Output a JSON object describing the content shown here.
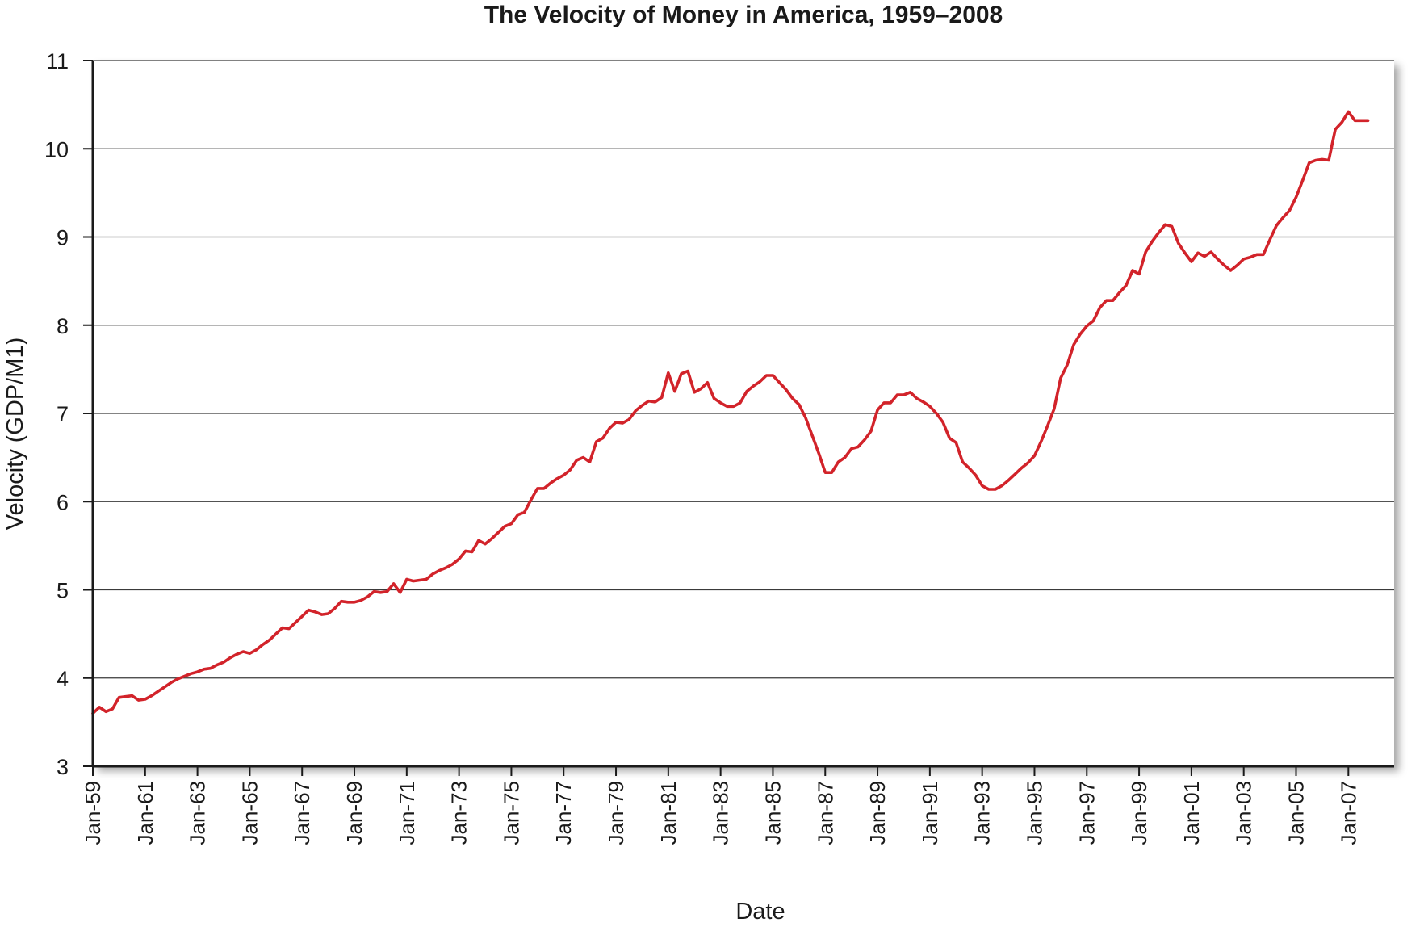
{
  "chart_data": {
    "type": "line",
    "title": "The Velocity of Money in America, 1959–2008",
    "xlabel": "Date",
    "ylabel": "Velocity (GDP/M1)",
    "ylim": [
      3,
      11
    ],
    "xlim": [
      1959.0,
      2008.75
    ],
    "yticks": [
      3,
      4,
      5,
      6,
      7,
      8,
      9,
      10,
      11
    ],
    "xtick_labels": [
      "Jan-59",
      "Jan-61",
      "Jan-63",
      "Jan-65",
      "Jan-67",
      "Jan-69",
      "Jan-71",
      "Jan-73",
      "Jan-75",
      "Jan-77",
      "Jan-79",
      "Jan-81",
      "Jan-83",
      "Jan-85",
      "Jan-87",
      "Jan-89",
      "Jan-91",
      "Jan-93",
      "Jan-95",
      "Jan-97",
      "Jan-99",
      "Jan-01",
      "Jan-03",
      "Jan-05",
      "Jan-07"
    ],
    "xtick_values": [
      1959,
      1961,
      1963,
      1965,
      1967,
      1969,
      1971,
      1973,
      1975,
      1977,
      1979,
      1981,
      1983,
      1985,
      1987,
      1989,
      1991,
      1993,
      1995,
      1997,
      1999,
      2001,
      2003,
      2005,
      2007
    ],
    "grid": true,
    "series": [
      {
        "color": "#d2232a",
        "points": [
          [
            1959.0,
            3.6
          ],
          [
            1959.25,
            3.67
          ],
          [
            1959.5,
            3.62
          ],
          [
            1959.75,
            3.65
          ],
          [
            1960.0,
            3.78
          ],
          [
            1960.25,
            3.79
          ],
          [
            1960.5,
            3.8
          ],
          [
            1960.75,
            3.75
          ],
          [
            1961.0,
            3.76
          ],
          [
            1961.25,
            3.8
          ],
          [
            1961.5,
            3.85
          ],
          [
            1961.75,
            3.9
          ],
          [
            1962.0,
            3.95
          ],
          [
            1962.25,
            3.99
          ],
          [
            1962.5,
            4.02
          ],
          [
            1962.75,
            4.05
          ],
          [
            1963.0,
            4.07
          ],
          [
            1963.25,
            4.1
          ],
          [
            1963.5,
            4.11
          ],
          [
            1963.75,
            4.15
          ],
          [
            1964.0,
            4.18
          ],
          [
            1964.25,
            4.23
          ],
          [
            1964.5,
            4.27
          ],
          [
            1964.75,
            4.3
          ],
          [
            1965.0,
            4.28
          ],
          [
            1965.25,
            4.32
          ],
          [
            1965.5,
            4.38
          ],
          [
            1965.75,
            4.43
          ],
          [
            1966.0,
            4.5
          ],
          [
            1966.25,
            4.57
          ],
          [
            1966.5,
            4.56
          ],
          [
            1966.75,
            4.63
          ],
          [
            1967.0,
            4.7
          ],
          [
            1967.25,
            4.77
          ],
          [
            1967.5,
            4.75
          ],
          [
            1967.75,
            4.72
          ],
          [
            1968.0,
            4.73
          ],
          [
            1968.25,
            4.79
          ],
          [
            1968.5,
            4.87
          ],
          [
            1968.75,
            4.86
          ],
          [
            1969.0,
            4.86
          ],
          [
            1969.25,
            4.88
          ],
          [
            1969.5,
            4.92
          ],
          [
            1969.75,
            4.98
          ],
          [
            1970.0,
            4.97
          ],
          [
            1970.25,
            4.98
          ],
          [
            1970.5,
            5.07
          ],
          [
            1970.75,
            4.97
          ],
          [
            1971.0,
            5.12
          ],
          [
            1971.25,
            5.1
          ],
          [
            1971.5,
            5.11
          ],
          [
            1971.75,
            5.12
          ],
          [
            1972.0,
            5.18
          ],
          [
            1972.25,
            5.22
          ],
          [
            1972.5,
            5.25
          ],
          [
            1972.75,
            5.29
          ],
          [
            1973.0,
            5.35
          ],
          [
            1973.25,
            5.44
          ],
          [
            1973.5,
            5.43
          ],
          [
            1973.75,
            5.56
          ],
          [
            1974.0,
            5.52
          ],
          [
            1974.25,
            5.58
          ],
          [
            1974.5,
            5.65
          ],
          [
            1974.75,
            5.72
          ],
          [
            1975.0,
            5.75
          ],
          [
            1975.25,
            5.85
          ],
          [
            1975.5,
            5.88
          ],
          [
            1975.75,
            6.02
          ],
          [
            1976.0,
            6.15
          ],
          [
            1976.25,
            6.15
          ],
          [
            1976.5,
            6.21
          ],
          [
            1976.75,
            6.26
          ],
          [
            1977.0,
            6.3
          ],
          [
            1977.25,
            6.36
          ],
          [
            1977.5,
            6.47
          ],
          [
            1977.75,
            6.5
          ],
          [
            1978.0,
            6.45
          ],
          [
            1978.25,
            6.68
          ],
          [
            1978.5,
            6.72
          ],
          [
            1978.75,
            6.83
          ],
          [
            1979.0,
            6.9
          ],
          [
            1979.25,
            6.89
          ],
          [
            1979.5,
            6.93
          ],
          [
            1979.75,
            7.03
          ],
          [
            1980.0,
            7.09
          ],
          [
            1980.25,
            7.14
          ],
          [
            1980.5,
            7.13
          ],
          [
            1980.75,
            7.18
          ],
          [
            1981.0,
            7.46
          ],
          [
            1981.25,
            7.25
          ],
          [
            1981.5,
            7.45
          ],
          [
            1981.75,
            7.48
          ],
          [
            1982.0,
            7.24
          ],
          [
            1982.25,
            7.28
          ],
          [
            1982.5,
            7.35
          ],
          [
            1982.75,
            7.17
          ],
          [
            1983.0,
            7.12
          ],
          [
            1983.25,
            7.08
          ],
          [
            1983.5,
            7.08
          ],
          [
            1983.75,
            7.12
          ],
          [
            1984.0,
            7.25
          ],
          [
            1984.25,
            7.31
          ],
          [
            1984.5,
            7.36
          ],
          [
            1984.75,
            7.43
          ],
          [
            1985.0,
            7.43
          ],
          [
            1985.25,
            7.35
          ],
          [
            1985.5,
            7.27
          ],
          [
            1985.75,
            7.17
          ],
          [
            1986.0,
            7.1
          ],
          [
            1986.25,
            6.95
          ],
          [
            1986.5,
            6.75
          ],
          [
            1986.75,
            6.55
          ],
          [
            1987.0,
            6.33
          ],
          [
            1987.25,
            6.33
          ],
          [
            1987.5,
            6.45
          ],
          [
            1987.75,
            6.5
          ],
          [
            1988.0,
            6.6
          ],
          [
            1988.25,
            6.62
          ],
          [
            1988.5,
            6.7
          ],
          [
            1988.75,
            6.8
          ],
          [
            1989.0,
            7.04
          ],
          [
            1989.25,
            7.12
          ],
          [
            1989.5,
            7.12
          ],
          [
            1989.75,
            7.21
          ],
          [
            1990.0,
            7.21
          ],
          [
            1990.25,
            7.24
          ],
          [
            1990.5,
            7.17
          ],
          [
            1990.75,
            7.13
          ],
          [
            1991.0,
            7.08
          ],
          [
            1991.25,
            7.0
          ],
          [
            1991.5,
            6.9
          ],
          [
            1991.75,
            6.72
          ],
          [
            1992.0,
            6.67
          ],
          [
            1992.25,
            6.45
          ],
          [
            1992.5,
            6.38
          ],
          [
            1992.75,
            6.3
          ],
          [
            1993.0,
            6.18
          ],
          [
            1993.25,
            6.14
          ],
          [
            1993.5,
            6.14
          ],
          [
            1993.75,
            6.18
          ],
          [
            1994.0,
            6.24
          ],
          [
            1994.25,
            6.31
          ],
          [
            1994.5,
            6.38
          ],
          [
            1994.75,
            6.44
          ],
          [
            1995.0,
            6.52
          ],
          [
            1995.25,
            6.68
          ],
          [
            1995.5,
            6.86
          ],
          [
            1995.75,
            7.05
          ],
          [
            1996.0,
            7.4
          ],
          [
            1996.25,
            7.55
          ],
          [
            1996.5,
            7.78
          ],
          [
            1996.75,
            7.9
          ],
          [
            1997.0,
            7.99
          ],
          [
            1997.25,
            8.05
          ],
          [
            1997.5,
            8.2
          ],
          [
            1997.75,
            8.28
          ],
          [
            1998.0,
            8.28
          ],
          [
            1998.25,
            8.37
          ],
          [
            1998.5,
            8.45
          ],
          [
            1998.75,
            8.62
          ],
          [
            1999.0,
            8.58
          ],
          [
            1999.25,
            8.83
          ],
          [
            1999.5,
            8.95
          ],
          [
            1999.75,
            9.05
          ],
          [
            2000.0,
            9.14
          ],
          [
            2000.25,
            9.12
          ],
          [
            2000.5,
            8.93
          ],
          [
            2000.75,
            8.82
          ],
          [
            2001.0,
            8.72
          ],
          [
            2001.25,
            8.82
          ],
          [
            2001.5,
            8.78
          ],
          [
            2001.75,
            8.83
          ],
          [
            2002.0,
            8.75
          ],
          [
            2002.25,
            8.68
          ],
          [
            2002.5,
            8.62
          ],
          [
            2002.75,
            8.68
          ],
          [
            2003.0,
            8.75
          ],
          [
            2003.25,
            8.77
          ],
          [
            2003.5,
            8.8
          ],
          [
            2003.75,
            8.8
          ],
          [
            2004.0,
            8.97
          ],
          [
            2004.25,
            9.13
          ],
          [
            2004.5,
            9.22
          ],
          [
            2004.75,
            9.3
          ],
          [
            2005.0,
            9.45
          ],
          [
            2005.25,
            9.64
          ],
          [
            2005.5,
            9.84
          ],
          [
            2005.75,
            9.87
          ],
          [
            2006.0,
            9.88
          ],
          [
            2006.25,
            9.87
          ],
          [
            2006.5,
            10.22
          ],
          [
            2006.75,
            10.3
          ],
          [
            2007.0,
            10.42
          ],
          [
            2007.25,
            10.32
          ],
          [
            2007.5,
            10.32
          ],
          [
            2007.75,
            10.32
          ]
        ]
      }
    ]
  }
}
